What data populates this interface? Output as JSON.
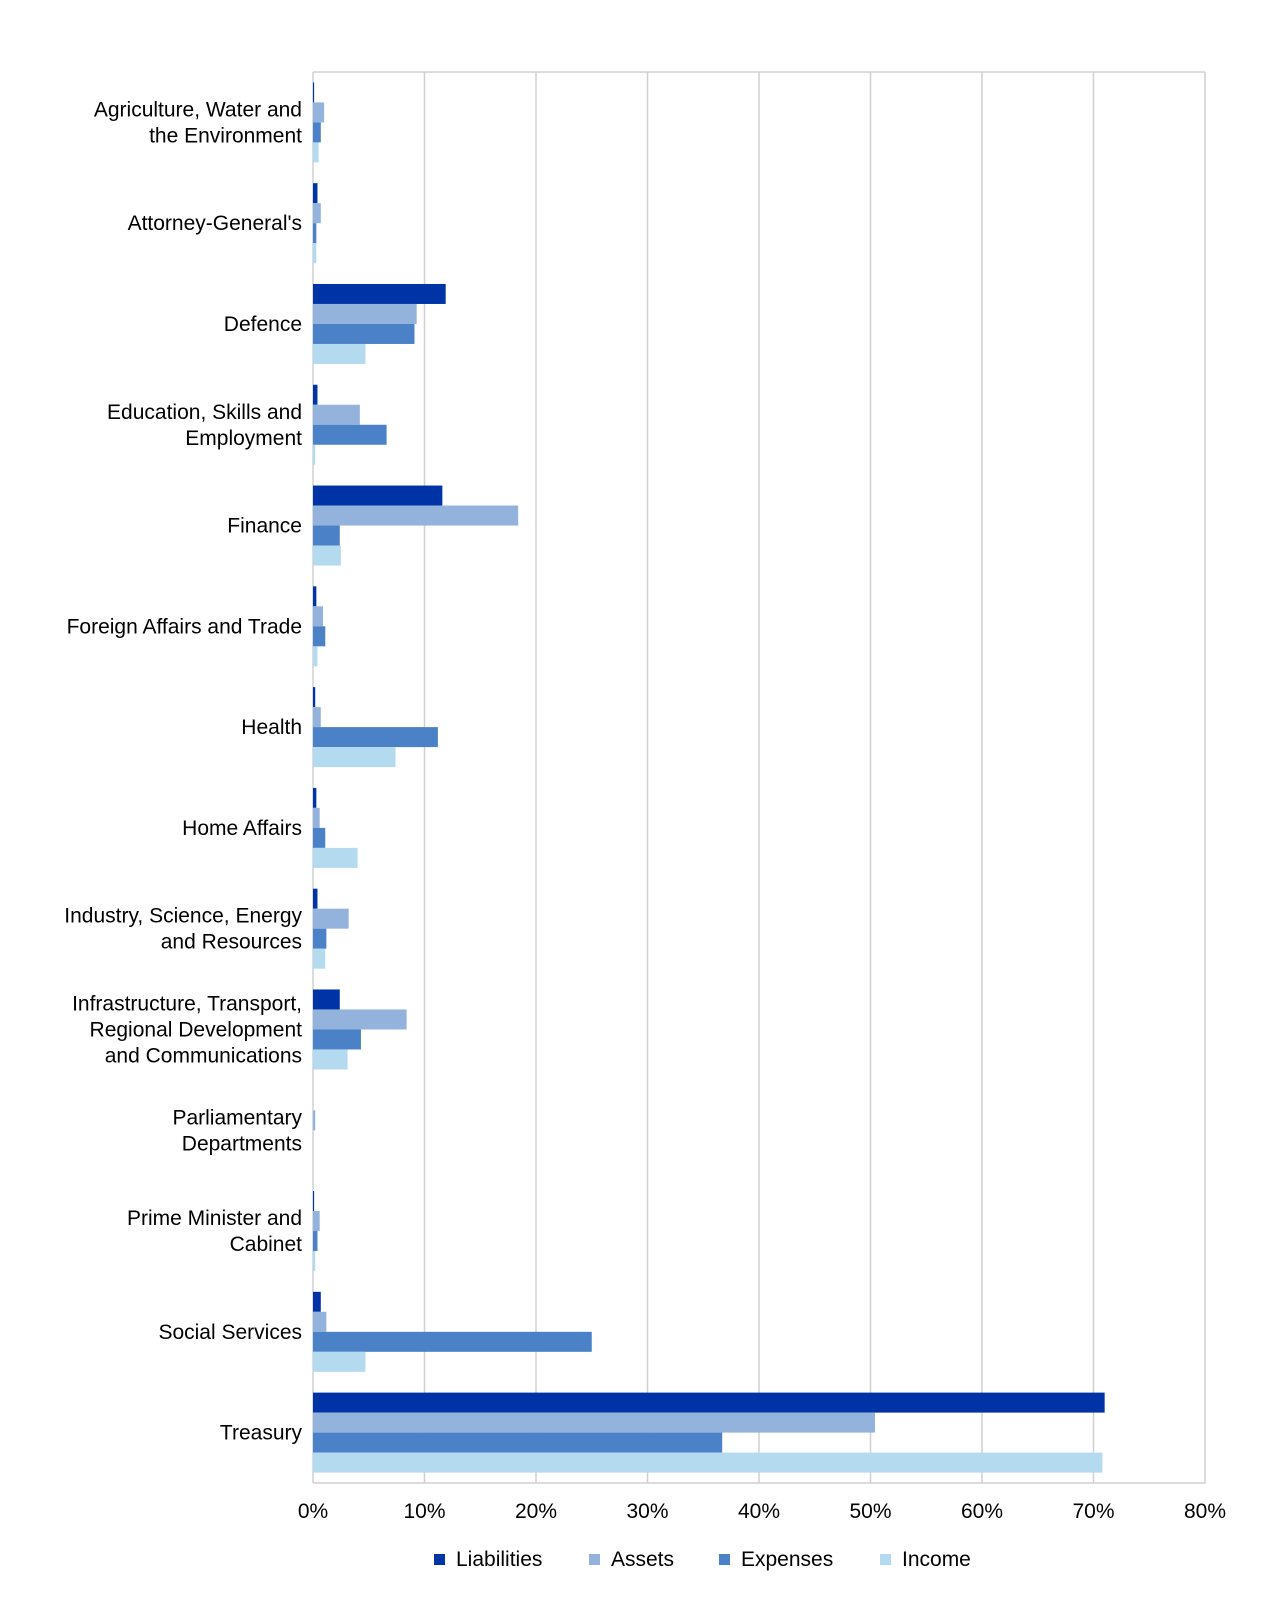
{
  "chart_data": {
    "type": "bar",
    "orientation": "horizontal",
    "categories": [
      [
        "Agriculture, Water and",
        "the Environment"
      ],
      [
        "Attorney-General's"
      ],
      [
        "Defence"
      ],
      [
        "Education, Skills and",
        "Employment"
      ],
      [
        "Finance"
      ],
      [
        "Foreign Affairs and Trade"
      ],
      [
        "Health"
      ],
      [
        "Home Affairs"
      ],
      [
        "Industry, Science, Energy",
        "and Resources"
      ],
      [
        "Infrastructure, Transport,",
        "Regional Development",
        "and Communications"
      ],
      [
        "Parliamentary",
        "Departments"
      ],
      [
        "Prime Minister and",
        "Cabinet"
      ],
      [
        "Social Services"
      ],
      [
        "Treasury"
      ]
    ],
    "series": [
      {
        "name": "Liabilities",
        "color": "#0033a6",
        "values": [
          0.1,
          0.4,
          11.9,
          0.4,
          11.6,
          0.3,
          0.2,
          0.3,
          0.4,
          2.4,
          0.0,
          0.1,
          0.7,
          71.0
        ]
      },
      {
        "name": "Assets",
        "color": "#93b3dc",
        "values": [
          1.0,
          0.7,
          9.3,
          4.2,
          18.4,
          0.9,
          0.7,
          0.6,
          3.2,
          8.4,
          0.2,
          0.6,
          1.2,
          50.4
        ]
      },
      {
        "name": "Expenses",
        "color": "#4a81c7",
        "values": [
          0.7,
          0.3,
          9.1,
          6.6,
          2.4,
          1.1,
          11.2,
          1.1,
          1.2,
          4.3,
          0.0,
          0.4,
          25.0,
          36.7
        ]
      },
      {
        "name": "Income",
        "color": "#b4daf0",
        "values": [
          0.5,
          0.3,
          4.7,
          0.2,
          2.5,
          0.4,
          7.4,
          4.0,
          1.1,
          3.1,
          0.0,
          0.2,
          4.7,
          70.8
        ]
      }
    ],
    "x_ticks": [
      "0%",
      "10%",
      "20%",
      "30%",
      "40%",
      "50%",
      "60%",
      "70%",
      "80%"
    ],
    "xlim": [
      0,
      80
    ],
    "x_unit": "%",
    "grid": "vertical",
    "legend_position": "bottom"
  }
}
